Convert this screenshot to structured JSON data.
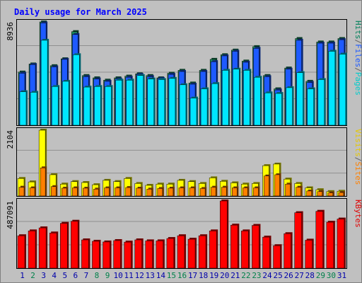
{
  "chart_data": {
    "type": "bar",
    "title": "Daily usage for March 2025",
    "categories": [
      "1",
      "2",
      "3",
      "4",
      "5",
      "6",
      "7",
      "8",
      "9",
      "10",
      "11",
      "12",
      "13",
      "14",
      "15",
      "16",
      "17",
      "18",
      "19",
      "20",
      "21",
      "22",
      "23",
      "24",
      "25",
      "26",
      "27",
      "28",
      "29",
      "30",
      "31"
    ],
    "weekend_days": [
      "2",
      "8",
      "9",
      "15",
      "16",
      "22",
      "23",
      "29",
      "30"
    ],
    "panels": [
      {
        "name": "hits-files-pages",
        "max_label": "8936",
        "ylim": [
          0,
          8936
        ],
        "side_labels": [
          {
            "text": "Pages",
            "color": "#00cccc"
          },
          {
            "text": "/",
            "color": "#606060"
          },
          {
            "text": "Files",
            "color": "#1e5aff"
          },
          {
            "text": "/",
            "color": "#606060"
          },
          {
            "text": "Hits",
            "color": "#00805a"
          }
        ],
        "series": [
          {
            "name": "Hits",
            "color": "#1a8c5a",
            "values": [
              4600,
              5300,
              8936,
              5150,
              5750,
              8100,
              4300,
              4100,
              3900,
              4100,
              4250,
              4450,
              4300,
              4100,
              4500,
              4750,
              3650,
              4750,
              5700,
              6100,
              6500,
              5550,
              6800,
              4300,
              3150,
              4950,
              7500,
              3800,
              7200,
              7200,
              7500
            ]
          },
          {
            "name": "Files",
            "color": "#1e5aff",
            "values": [
              4500,
              5250,
              8850,
              5050,
              5700,
              7850,
              4200,
              4000,
              3800,
              4000,
              4150,
              4400,
              4200,
              4050,
              4400,
              4650,
              3550,
              4650,
              5500,
              6000,
              6400,
              5450,
              6650,
              4200,
              3050,
              4850,
              7350,
              3700,
              7100,
              7100,
              7400
            ]
          },
          {
            "name": "Pages",
            "color": "#00e6ff",
            "values": [
              2900,
              2850,
              7350,
              3350,
              3800,
              6100,
              3300,
              3350,
              3350,
              3900,
              3900,
              4300,
              4000,
              3950,
              4050,
              3500,
              2350,
              3150,
              3600,
              4750,
              4850,
              4750,
              4150,
              2800,
              2750,
              3250,
              4550,
              3150,
              3950,
              6400,
              6150
            ]
          }
        ]
      },
      {
        "name": "visits-sites",
        "max_label": "2104",
        "ylim": [
          0,
          2104
        ],
        "side_labels": [
          {
            "text": "Sites",
            "color": "#ff8000"
          },
          {
            "text": "/",
            "color": "#606060"
          },
          {
            "text": "Visits",
            "color": "#e6c800"
          }
        ],
        "series": [
          {
            "name": "Visits",
            "color": "#ffff00",
            "values": [
              560,
              450,
              2104,
              680,
              380,
              460,
              430,
              360,
              500,
              460,
              560,
              400,
              340,
              380,
              380,
              500,
              460,
              400,
              580,
              470,
              420,
              380,
              400,
              970,
              1020,
              540,
              400,
              260,
              200,
              140,
              150
            ]
          },
          {
            "name": "Sites",
            "color": "#ff8000",
            "values": [
              280,
              260,
              900,
              300,
              250,
              260,
              250,
              220,
              260,
              260,
              270,
              250,
              220,
              240,
              250,
              260,
              260,
              240,
              280,
              280,
              260,
              260,
              260,
              640,
              680,
              380,
              280,
              160,
              140,
              100,
              110
            ]
          }
        ]
      },
      {
        "name": "kbytes",
        "max_label": "487091",
        "ylim": [
          0,
          487091
        ],
        "side_labels": [
          {
            "text": "KBytes",
            "color": "#e00000"
          }
        ],
        "series": [
          {
            "name": "KBytes",
            "color": "#ff0000",
            "values": [
              235000,
              270000,
              292000,
              255000,
              325000,
              340000,
              205000,
              195000,
              190000,
              200000,
              189000,
              205000,
              198000,
              198000,
              215000,
              235000,
              210000,
              235000,
              270000,
              487091,
              312000,
              270000,
              310000,
              225000,
              163000,
              250000,
              402000,
              203000,
              412000,
              333000,
              356000
            ]
          }
        ]
      }
    ]
  },
  "colors": {
    "panel_bg": "#c0c0c0",
    "frame": "#000000",
    "title_text": "#0000ff",
    "gridline": "#909090",
    "weekday_label": "#0000aa",
    "weekend_label": "#00804a",
    "axis_max_label": "#000000"
  }
}
